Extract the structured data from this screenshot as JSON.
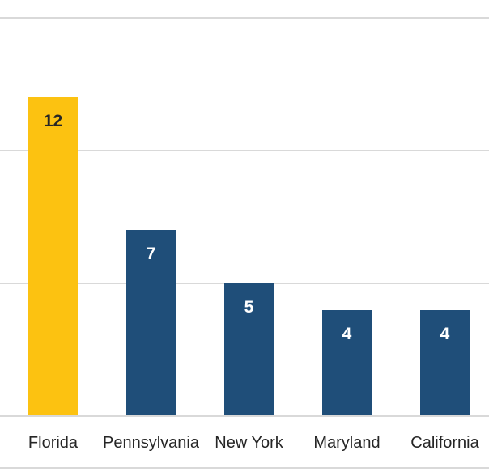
{
  "chart_data": {
    "type": "bar",
    "categories": [
      "Florida",
      "Pennsylvania",
      "New York",
      "Maryland",
      "California"
    ],
    "values": [
      12,
      7,
      5,
      4,
      4
    ],
    "bar_colors": [
      "#FCC211",
      "#1F4E79",
      "#1F4E79",
      "#1F4E79",
      "#1F4E79"
    ],
    "value_label_colors": [
      "#262626",
      "#FFFFFF",
      "#FFFFFF",
      "#FFFFFF",
      "#FFFFFF"
    ],
    "title": "",
    "xlabel": "",
    "ylabel": "",
    "ylim": [
      0,
      15
    ],
    "gridline_values": [
      0,
      5,
      10,
      15
    ],
    "grid": "on",
    "legend": "none",
    "value_labels_position": "inside-end",
    "highlight_category": "Florida",
    "colors": {
      "gridline": "#D9D9D9",
      "axis_line": "#D9D9D9",
      "bottom_border": "#D9D9D9",
      "category_label": "#262626",
      "background": "#FFFFFF",
      "highlight_bar": "#FCC211",
      "default_bar": "#1F4E79"
    }
  }
}
